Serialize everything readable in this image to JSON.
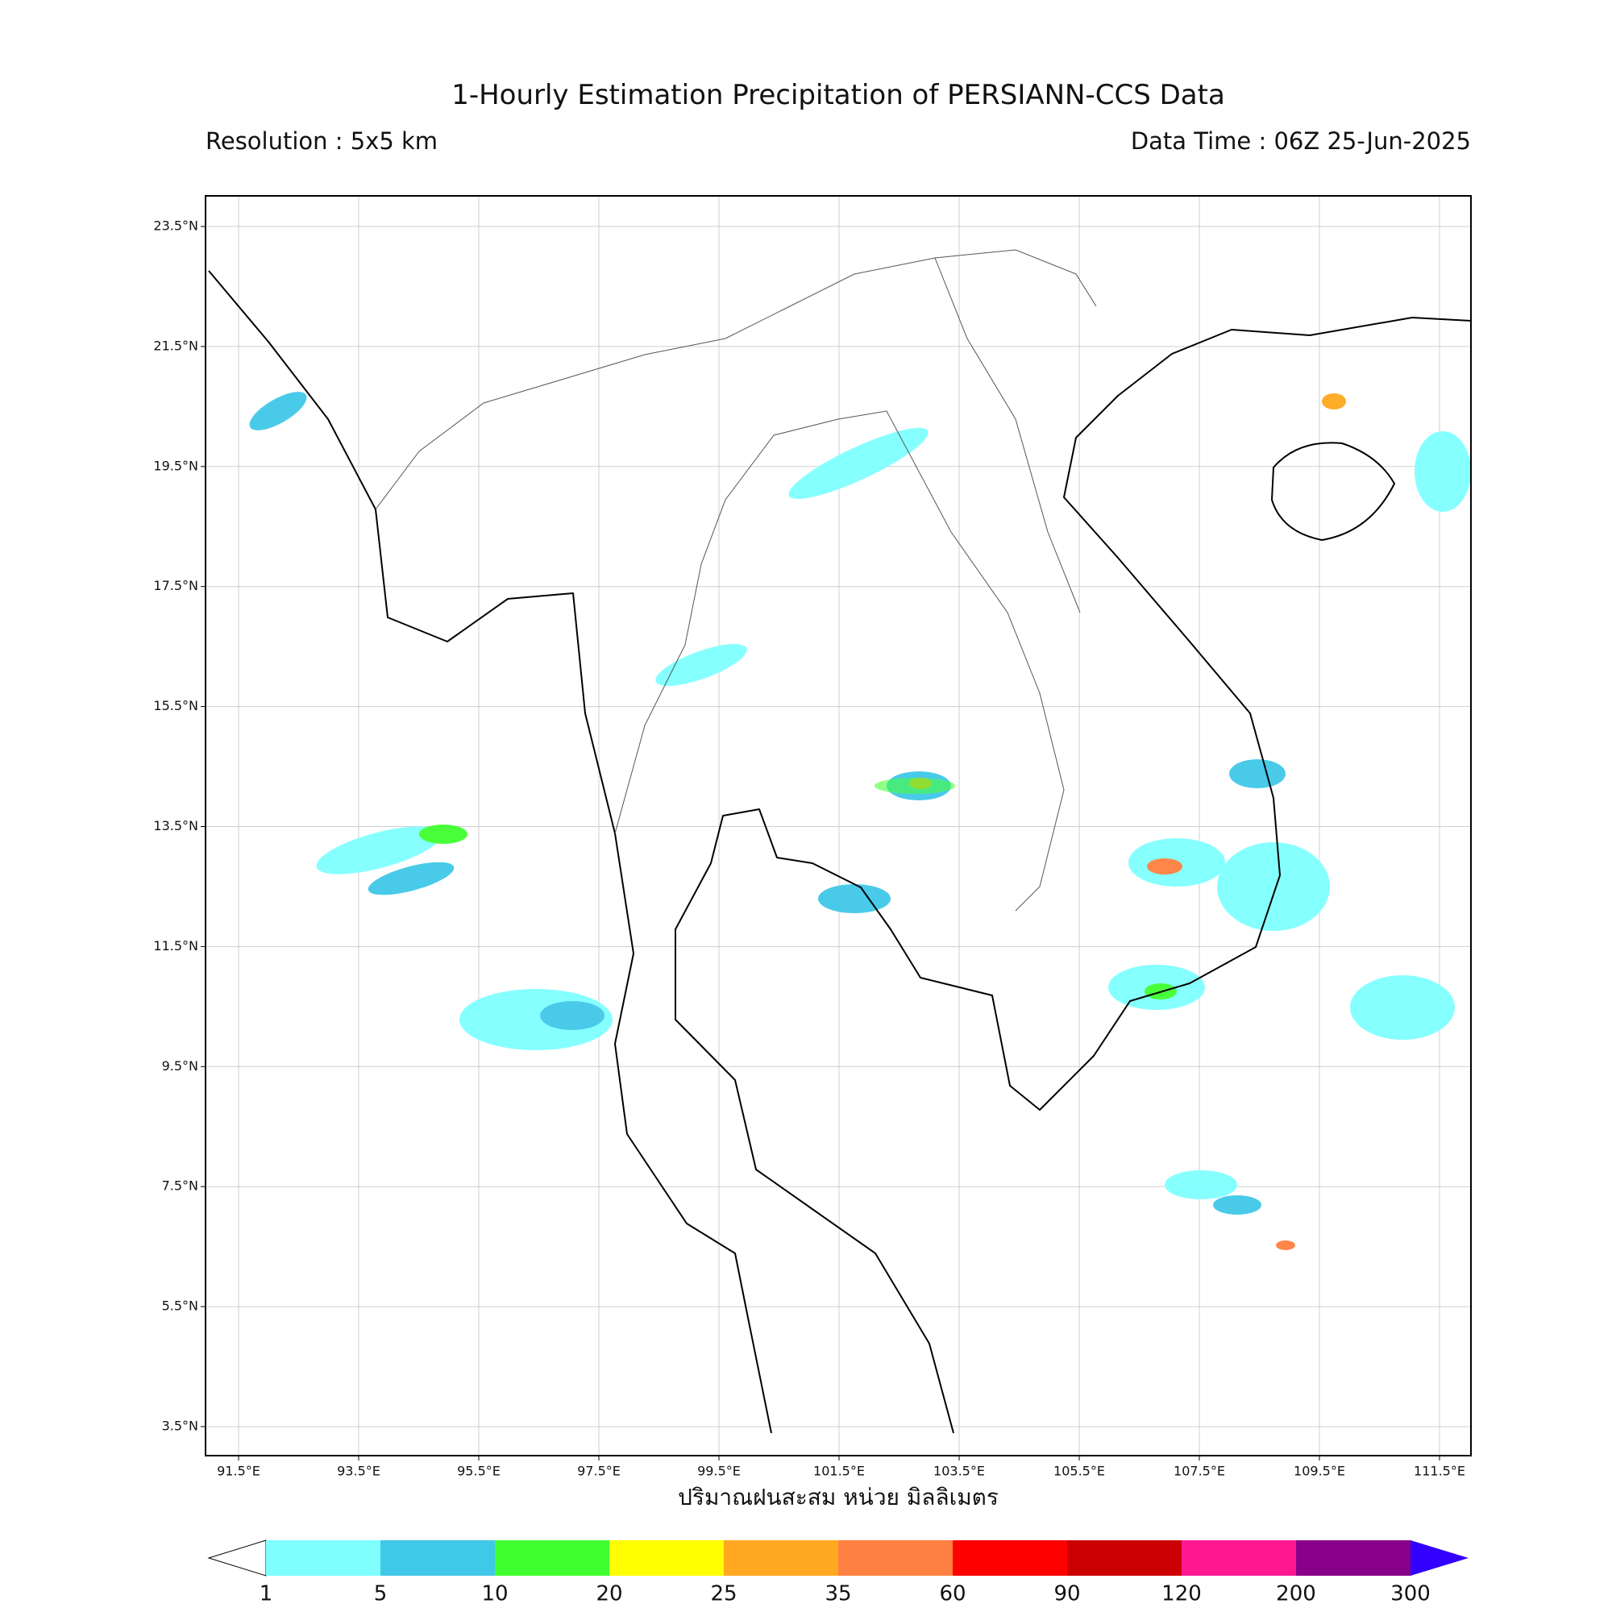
{
  "header": {
    "title": "1-Hourly Estimation Precipitation of PERSIANN-CCS Data",
    "resolution": "Resolution : 5x5 km",
    "data_time": "Data Time : 06Z 25-Jun-2025"
  },
  "map": {
    "lat_labels": [
      "23.5°N",
      "21.5°N",
      "19.5°N",
      "17.5°N",
      "15.5°N",
      "13.5°N",
      "11.5°N",
      "9.5°N",
      "7.5°N",
      "5.5°N",
      "3.5°N"
    ],
    "lon_labels": [
      "91.5°E",
      "93.5°E",
      "95.5°E",
      "97.5°E",
      "99.5°E",
      "101.5°E",
      "103.5°E",
      "105.5°E",
      "107.5°E",
      "109.5°E",
      "111.5°E"
    ],
    "grid": true
  },
  "colorbar": {
    "label": "ปริมาณฝนสะสม หน่วย มิลลิเมตร",
    "levels": [
      1,
      5,
      10,
      20,
      25,
      35,
      60,
      90,
      120,
      200,
      300
    ],
    "colors": [
      "#80ffff",
      "#40c8e8",
      "#40ff30",
      "#ffff00",
      "#ffa820",
      "#ff8040",
      "#ff0000",
      "#cc0000",
      "#ff1890",
      "#880088"
    ],
    "under_color": "#ffffff",
    "over_color": "#3300ff"
  }
}
